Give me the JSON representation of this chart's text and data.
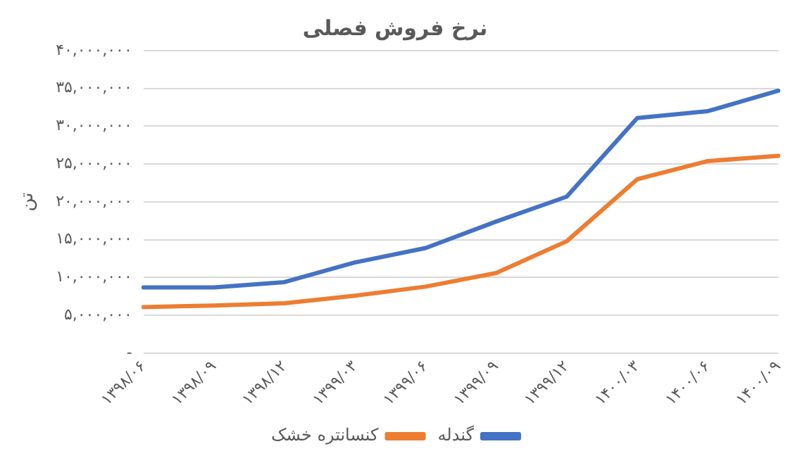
{
  "chart_data": {
    "type": "line",
    "title": "نرخ فروش فصلی",
    "ylabel": "تن",
    "categories": [
      "۱۳۹۸/۰۶",
      "۱۳۹۸/۰۹",
      "۱۳۹۸/۱۲",
      "۱۳۹۹/۰۳",
      "۱۳۹۹/۰۶",
      "۱۳۹۹/۰۹",
      "۱۳۹۹/۱۲",
      "۱۴۰۰/۰۳",
      "۱۴۰۰/۰۶",
      "۱۴۰۰/۰۹"
    ],
    "series": [
      {
        "name": "گندله",
        "color": "#4472c4",
        "values": [
          8700000,
          8700000,
          9400000,
          12000000,
          13900000,
          17400000,
          20700000,
          31100000,
          32000000,
          34700000
        ]
      },
      {
        "name": "کنسانتره خشک",
        "color": "#ed7d31",
        "values": [
          6100000,
          6300000,
          6600000,
          7600000,
          8800000,
          10600000,
          14800000,
          23000000,
          25400000,
          26100000
        ]
      }
    ],
    "ylim": [
      0,
      40000000
    ],
    "yticks": [
      {
        "value": 0,
        "label": "-"
      },
      {
        "value": 5000000,
        "label": "۵,۰۰۰,۰۰۰"
      },
      {
        "value": 10000000,
        "label": "۱۰,۰۰۰,۰۰۰"
      },
      {
        "value": 15000000,
        "label": "۱۵,۰۰۰,۰۰۰"
      },
      {
        "value": 20000000,
        "label": "۲۰,۰۰۰,۰۰۰"
      },
      {
        "value": 25000000,
        "label": "۲۵,۰۰۰,۰۰۰"
      },
      {
        "value": 30000000,
        "label": "۳۰,۰۰۰,۰۰۰"
      },
      {
        "value": 35000000,
        "label": "۳۵,۰۰۰,۰۰۰"
      },
      {
        "value": 40000000,
        "label": "۴۰,۰۰۰,۰۰۰"
      }
    ],
    "grid": "y",
    "legend": "bottom",
    "marker": "none",
    "line_style": "solid"
  }
}
